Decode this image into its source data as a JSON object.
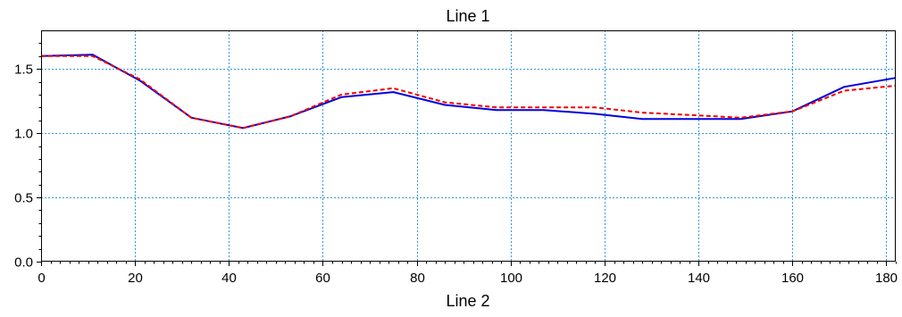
{
  "chart_data": {
    "type": "line",
    "title": "Line 1",
    "xlabel": "Line 2",
    "ylabel": "",
    "xlim": [
      0,
      182
    ],
    "ylim": [
      0,
      1.8
    ],
    "x_ticks": [
      0,
      20,
      40,
      60,
      80,
      100,
      120,
      140,
      160,
      180
    ],
    "y_ticks": [
      0.0,
      0.5,
      1.0,
      1.5
    ],
    "x_tick_labels": [
      "0",
      "20",
      "40",
      "60",
      "80",
      "100",
      "120",
      "140",
      "160",
      "180"
    ],
    "y_tick_labels": [
      "0.0",
      "0.5",
      "1.0",
      "1.5"
    ],
    "grid": true,
    "grid_color": "#3399dd",
    "series": [
      {
        "color": "#0000dd",
        "style": "solid",
        "x": [
          0,
          11,
          21,
          32,
          43,
          53,
          64,
          75,
          86,
          97,
          107,
          118,
          128,
          139,
          149,
          160,
          171,
          182
        ],
        "y": [
          1.6,
          1.61,
          1.41,
          1.12,
          1.04,
          1.13,
          1.28,
          1.32,
          1.22,
          1.18,
          1.18,
          1.15,
          1.11,
          1.11,
          1.11,
          1.17,
          1.36,
          1.43
        ]
      },
      {
        "color": "#ee0000",
        "style": "dashed",
        "x": [
          0,
          11,
          21,
          32,
          43,
          53,
          64,
          75,
          86,
          97,
          107,
          118,
          128,
          139,
          149,
          160,
          171,
          182
        ],
        "y": [
          1.6,
          1.6,
          1.42,
          1.12,
          1.04,
          1.13,
          1.3,
          1.35,
          1.24,
          1.2,
          1.2,
          1.2,
          1.16,
          1.14,
          1.12,
          1.17,
          1.33,
          1.37
        ]
      }
    ]
  }
}
